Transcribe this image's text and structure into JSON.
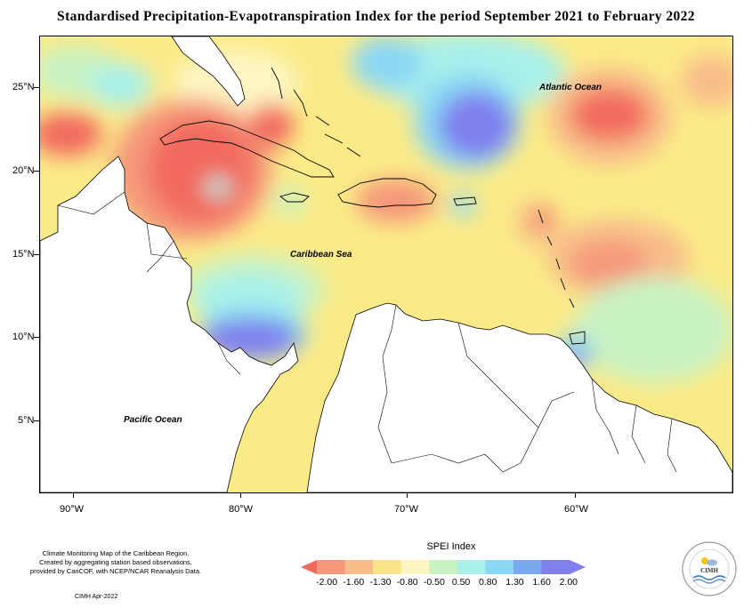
{
  "title": "Standardised Precipitation-Evapotranspiration Index for the period September 2021 to February 2022",
  "map": {
    "latitude_labels": [
      "25°N",
      "20°N",
      "15°N",
      "10°N",
      "5°N"
    ],
    "longitude_labels": [
      "90°W",
      "80°W",
      "70°W",
      "60°W"
    ],
    "place_labels": {
      "atlantic": "Atlantic Ocean",
      "caribbean": "Caribbean Sea",
      "pacific": "Pacific Ocean"
    },
    "colors": {
      "ocean_base": "#fbeb88",
      "land": "#ffffff"
    }
  },
  "legend": {
    "title": "SPEI Index",
    "ticks": [
      "-2.00",
      "-1.60",
      "-1.30",
      "-0.80",
      "-0.50",
      "0.50",
      "0.80",
      "1.30",
      "1.60",
      "2.00"
    ],
    "colors": [
      "#f26a5e",
      "#f5987a",
      "#f8bd8a",
      "#fbe38a",
      "#fdf6c4",
      "#c9f2c2",
      "#a9f1ea",
      "#8ad8f5",
      "#7aa9ef",
      "#7f7fee"
    ]
  },
  "credits": {
    "lines": [
      "Climate Monitoring Map of the Caribbean Region.",
      "Created by aggregating station based observations,",
      "provided by CariCOF, with NCEP/NCAR Reanalysis Data."
    ],
    "date": "CIMH Apr-2022"
  },
  "logo": {
    "text": "CIMH",
    "ring_text": "Caribbean Institute for Meteorology and Hydrology"
  }
}
